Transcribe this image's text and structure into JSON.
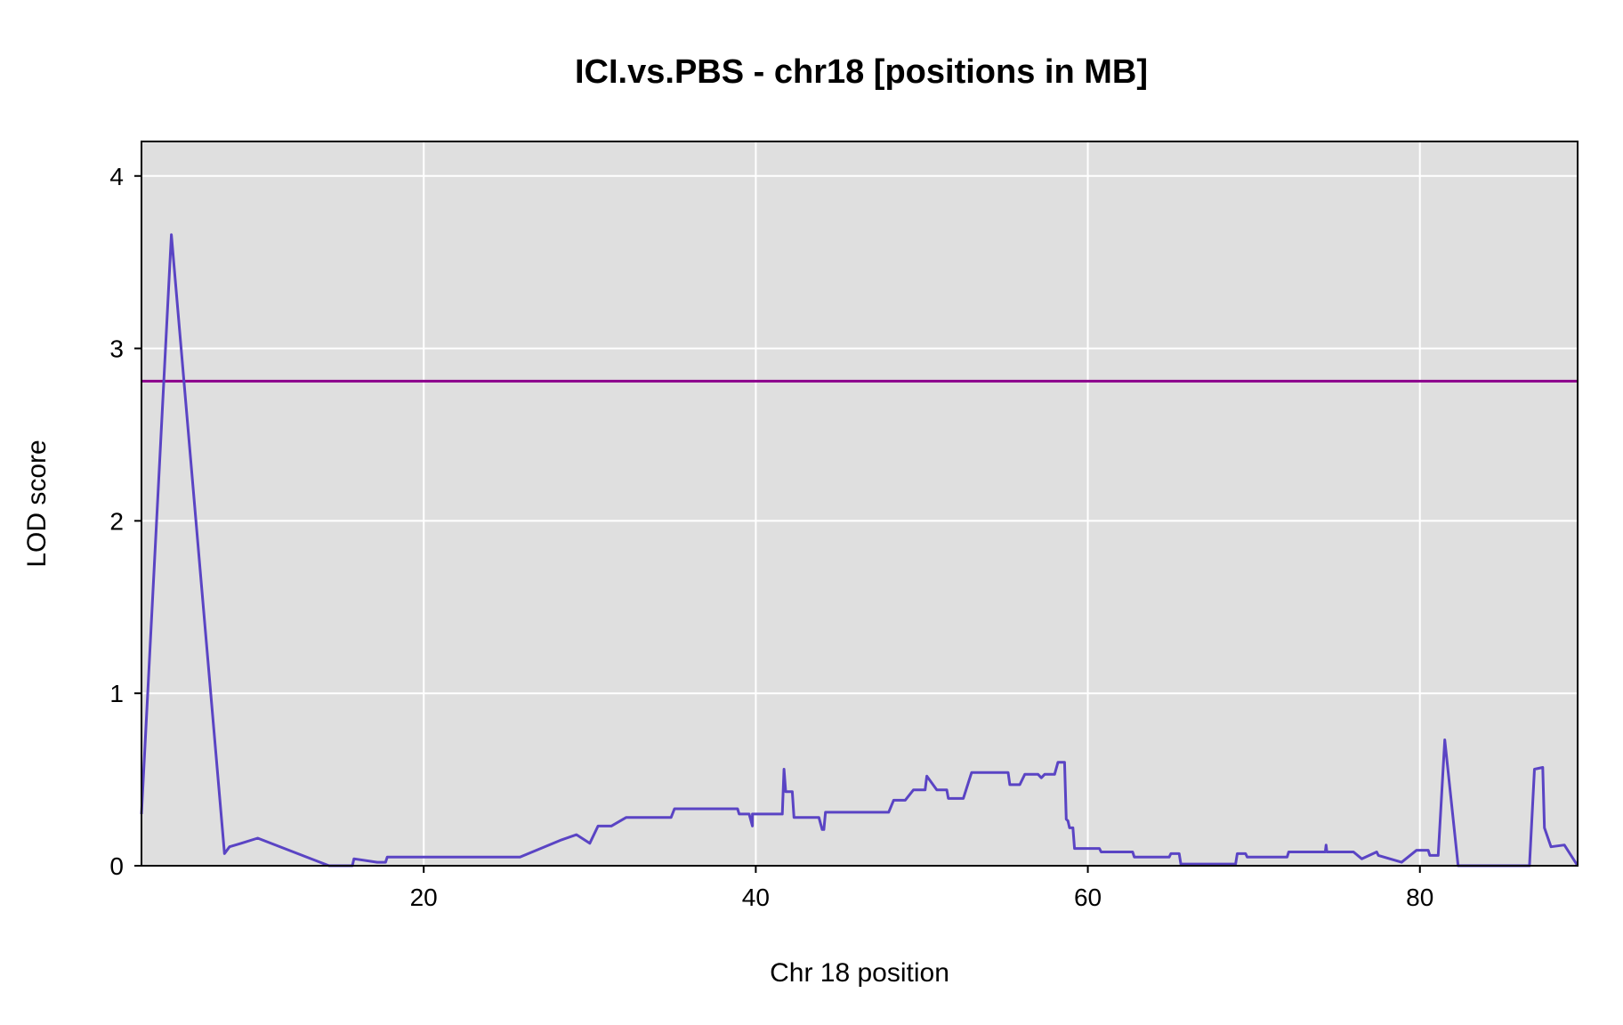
{
  "chart_data": {
    "type": "line",
    "title": "ICI.vs.PBS - chr18 [positions in MB]",
    "xlabel": "Chr 18 position",
    "ylabel": "LOD score",
    "xlim": [
      3,
      89.5
    ],
    "ylim": [
      0,
      4.2
    ],
    "xticks": [
      20,
      40,
      60,
      80
    ],
    "yticks": [
      0,
      1,
      2,
      3,
      4
    ],
    "grid": true,
    "panel_background": "#dfdfdf",
    "grid_color": "#ffffff",
    "threshold": {
      "value": 2.81,
      "color": "#8b008b"
    },
    "series": [
      {
        "color": "#5a44c4",
        "x": [
          3.0,
          4.8,
          8.0,
          8.3,
          9.0,
          10.0,
          14.3,
          15.7,
          15.8,
          17.2,
          17.7,
          17.8,
          22.0,
          25.8,
          28.3,
          29.2,
          30.0,
          30.5,
          31.3,
          32.2,
          34.9,
          35.1,
          38.9,
          39.0,
          39.6,
          39.8,
          39.8,
          41.6,
          41.7,
          41.8,
          42.2,
          42.3,
          43.8,
          44.0,
          44.1,
          44.2,
          48.0,
          48.3,
          49.0,
          49.5,
          50.2,
          50.3,
          50.9,
          51.5,
          51.6,
          52.5,
          53.0,
          55.2,
          55.3,
          55.9,
          56.2,
          57.0,
          57.2,
          57.4,
          58.0,
          58.2,
          58.6,
          58.7,
          58.8,
          58.9,
          59.1,
          59.2,
          60.3,
          60.4,
          60.7,
          60.8,
          62.7,
          62.8,
          64.9,
          65.0,
          65.5,
          65.6,
          68.9,
          69.0,
          69.5,
          69.6,
          72.0,
          72.1,
          74.3,
          74.35,
          74.4,
          76.0,
          76.5,
          77.4,
          77.5,
          78.9,
          79.8,
          80.5,
          80.6,
          81.1,
          81.5,
          82.3,
          82.5,
          86.6,
          86.9,
          87.4,
          87.5,
          87.9,
          88.7,
          89.5
        ],
        "y": [
          0.3,
          3.66,
          0.07,
          0.11,
          0.13,
          0.16,
          0.0,
          0.0,
          0.04,
          0.02,
          0.02,
          0.05,
          0.05,
          0.05,
          0.15,
          0.18,
          0.13,
          0.23,
          0.23,
          0.28,
          0.28,
          0.33,
          0.33,
          0.3,
          0.3,
          0.23,
          0.3,
          0.3,
          0.56,
          0.43,
          0.43,
          0.28,
          0.28,
          0.21,
          0.21,
          0.31,
          0.31,
          0.38,
          0.38,
          0.44,
          0.44,
          0.52,
          0.44,
          0.44,
          0.39,
          0.39,
          0.54,
          0.54,
          0.47,
          0.47,
          0.53,
          0.53,
          0.51,
          0.53,
          0.53,
          0.6,
          0.6,
          0.27,
          0.26,
          0.22,
          0.22,
          0.1,
          0.1,
          0.1,
          0.1,
          0.08,
          0.08,
          0.05,
          0.05,
          0.07,
          0.07,
          0.01,
          0.01,
          0.07,
          0.07,
          0.05,
          0.05,
          0.08,
          0.08,
          0.12,
          0.08,
          0.08,
          0.04,
          0.08,
          0.06,
          0.02,
          0.09,
          0.09,
          0.06,
          0.06,
          0.73,
          0.0,
          0.0,
          0.0,
          0.56,
          0.57,
          0.22,
          0.11,
          0.12,
          0.0
        ]
      }
    ]
  }
}
